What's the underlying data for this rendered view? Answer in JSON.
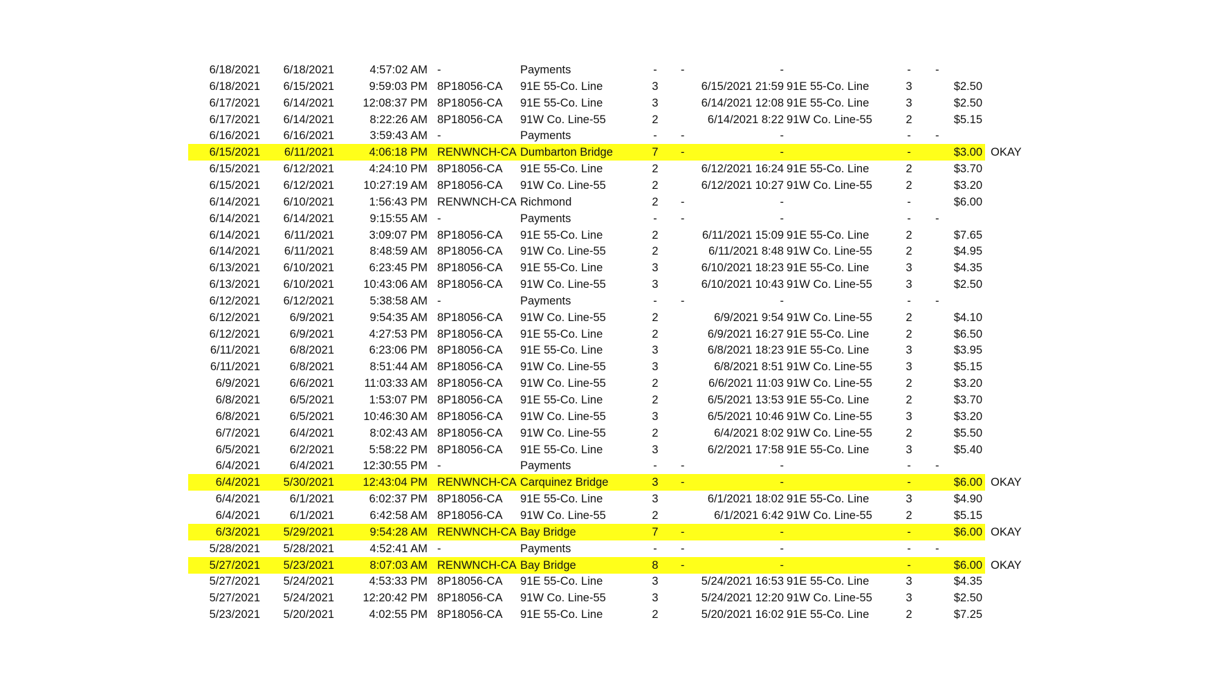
{
  "highlight_color": "#ffff1a",
  "rows": [
    {
      "cells": [
        "6/18/2021",
        "6/18/2021",
        "4:57:02 AM",
        "-",
        "Payments",
        "-",
        "-",
        "-",
        "",
        "-",
        "-",
        "",
        ""
      ],
      "highlight": false
    },
    {
      "cells": [
        "6/18/2021",
        "6/15/2021",
        "9:59:03 PM",
        "8P18056-CA",
        "91E 55-Co. Line",
        "3",
        "",
        "6/15/2021 21:59",
        "91E 55-Co. Line",
        "3",
        "",
        "$2.50",
        ""
      ],
      "highlight": false
    },
    {
      "cells": [
        "6/17/2021",
        "6/14/2021",
        "12:08:37 PM",
        "8P18056-CA",
        "91E 55-Co. Line",
        "3",
        "",
        "6/14/2021 12:08",
        "91E 55-Co. Line",
        "3",
        "",
        "$2.50",
        ""
      ],
      "highlight": false
    },
    {
      "cells": [
        "6/17/2021",
        "6/14/2021",
        "8:22:26 AM",
        "8P18056-CA",
        "91W Co. Line-55",
        "2",
        "",
        "6/14/2021 8:22",
        "91W Co. Line-55",
        "2",
        "",
        "$5.15",
        ""
      ],
      "highlight": false
    },
    {
      "cells": [
        "6/16/2021",
        "6/16/2021",
        "3:59:43 AM",
        "-",
        "Payments",
        "-",
        "-",
        "-",
        "",
        "-",
        "-",
        "",
        ""
      ],
      "highlight": false
    },
    {
      "cells": [
        "6/15/2021",
        "6/11/2021",
        "4:06:18 PM",
        "RENWNCH-CA",
        "Dumbarton Bridge",
        "7",
        "-",
        "-",
        "",
        "-",
        "",
        "$3.00",
        "OKAY"
      ],
      "highlight": true
    },
    {
      "cells": [
        "6/15/2021",
        "6/12/2021",
        "4:24:10 PM",
        "8P18056-CA",
        "91E 55-Co. Line",
        "2",
        "",
        "6/12/2021 16:24",
        "91E 55-Co. Line",
        "2",
        "",
        "$3.70",
        ""
      ],
      "highlight": false
    },
    {
      "cells": [
        "6/15/2021",
        "6/12/2021",
        "10:27:19 AM",
        "8P18056-CA",
        "91W Co. Line-55",
        "2",
        "",
        "6/12/2021 10:27",
        "91W Co. Line-55",
        "2",
        "",
        "$3.20",
        ""
      ],
      "highlight": false
    },
    {
      "cells": [
        "6/14/2021",
        "6/10/2021",
        "1:56:43 PM",
        "RENWNCH-CA",
        "Richmond",
        "2",
        "-",
        "-",
        "",
        "-",
        "",
        "$6.00",
        ""
      ],
      "highlight": false
    },
    {
      "cells": [
        "6/14/2021",
        "6/14/2021",
        "9:15:55 AM",
        "-",
        "Payments",
        "-",
        "-",
        "-",
        "",
        "-",
        "-",
        "",
        ""
      ],
      "highlight": false
    },
    {
      "cells": [
        "6/14/2021",
        "6/11/2021",
        "3:09:07 PM",
        "8P18056-CA",
        "91E 55-Co. Line",
        "2",
        "",
        "6/11/2021 15:09",
        "91E 55-Co. Line",
        "2",
        "",
        "$7.65",
        ""
      ],
      "highlight": false
    },
    {
      "cells": [
        "6/14/2021",
        "6/11/2021",
        "8:48:59 AM",
        "8P18056-CA",
        "91W Co. Line-55",
        "2",
        "",
        "6/11/2021 8:48",
        "91W Co. Line-55",
        "2",
        "",
        "$4.95",
        ""
      ],
      "highlight": false
    },
    {
      "cells": [
        "6/13/2021",
        "6/10/2021",
        "6:23:45 PM",
        "8P18056-CA",
        "91E 55-Co. Line",
        "3",
        "",
        "6/10/2021 18:23",
        "91E 55-Co. Line",
        "3",
        "",
        "$4.35",
        ""
      ],
      "highlight": false
    },
    {
      "cells": [
        "6/13/2021",
        "6/10/2021",
        "10:43:06 AM",
        "8P18056-CA",
        "91W Co. Line-55",
        "3",
        "",
        "6/10/2021 10:43",
        "91W Co. Line-55",
        "3",
        "",
        "$2.50",
        ""
      ],
      "highlight": false
    },
    {
      "cells": [
        "6/12/2021",
        "6/12/2021",
        "5:38:58 AM",
        "-",
        "Payments",
        "-",
        "-",
        "-",
        "",
        "-",
        "-",
        "",
        ""
      ],
      "highlight": false
    },
    {
      "cells": [
        "6/12/2021",
        "6/9/2021",
        "9:54:35 AM",
        "8P18056-CA",
        "91W Co. Line-55",
        "2",
        "",
        "6/9/2021 9:54",
        "91W Co. Line-55",
        "2",
        "",
        "$4.10",
        ""
      ],
      "highlight": false
    },
    {
      "cells": [
        "6/12/2021",
        "6/9/2021",
        "4:27:53 PM",
        "8P18056-CA",
        "91E 55-Co. Line",
        "2",
        "",
        "6/9/2021 16:27",
        "91E 55-Co. Line",
        "2",
        "",
        "$6.50",
        ""
      ],
      "highlight": false
    },
    {
      "cells": [
        "6/11/2021",
        "6/8/2021",
        "6:23:06 PM",
        "8P18056-CA",
        "91E 55-Co. Line",
        "3",
        "",
        "6/8/2021 18:23",
        "91E 55-Co. Line",
        "3",
        "",
        "$3.95",
        ""
      ],
      "highlight": false
    },
    {
      "cells": [
        "6/11/2021",
        "6/8/2021",
        "8:51:44 AM",
        "8P18056-CA",
        "91W Co. Line-55",
        "3",
        "",
        "6/8/2021 8:51",
        "91W Co. Line-55",
        "3",
        "",
        "$5.15",
        ""
      ],
      "highlight": false
    },
    {
      "cells": [
        "6/9/2021",
        "6/6/2021",
        "11:03:33 AM",
        "8P18056-CA",
        "91W Co. Line-55",
        "2",
        "",
        "6/6/2021 11:03",
        "91W Co. Line-55",
        "2",
        "",
        "$3.20",
        ""
      ],
      "highlight": false
    },
    {
      "cells": [
        "6/8/2021",
        "6/5/2021",
        "1:53:07 PM",
        "8P18056-CA",
        "91E 55-Co. Line",
        "2",
        "",
        "6/5/2021 13:53",
        "91E 55-Co. Line",
        "2",
        "",
        "$3.70",
        ""
      ],
      "highlight": false
    },
    {
      "cells": [
        "6/8/2021",
        "6/5/2021",
        "10:46:30 AM",
        "8P18056-CA",
        "91W Co. Line-55",
        "3",
        "",
        "6/5/2021 10:46",
        "91W Co. Line-55",
        "3",
        "",
        "$3.20",
        ""
      ],
      "highlight": false
    },
    {
      "cells": [
        "6/7/2021",
        "6/4/2021",
        "8:02:43 AM",
        "8P18056-CA",
        "91W Co. Line-55",
        "2",
        "",
        "6/4/2021 8:02",
        "91W Co. Line-55",
        "2",
        "",
        "$5.50",
        ""
      ],
      "highlight": false
    },
    {
      "cells": [
        "6/5/2021",
        "6/2/2021",
        "5:58:22 PM",
        "8P18056-CA",
        "91E 55-Co. Line",
        "3",
        "",
        "6/2/2021 17:58",
        "91E 55-Co. Line",
        "3",
        "",
        "$5.40",
        ""
      ],
      "highlight": false
    },
    {
      "cells": [
        "6/4/2021",
        "6/4/2021",
        "12:30:55 PM",
        "-",
        "Payments",
        "-",
        "-",
        "-",
        "",
        "-",
        "-",
        "",
        ""
      ],
      "highlight": false
    },
    {
      "cells": [
        "6/4/2021",
        "5/30/2021",
        "12:43:04 PM",
        "RENWNCH-CA",
        "Carquinez Bridge",
        "3",
        "-",
        "-",
        "",
        "-",
        "",
        "$6.00",
        "OKAY"
      ],
      "highlight": true
    },
    {
      "cells": [
        "6/4/2021",
        "6/1/2021",
        "6:02:37 PM",
        "8P18056-CA",
        "91E 55-Co. Line",
        "3",
        "",
        "6/1/2021 18:02",
        "91E 55-Co. Line",
        "3",
        "",
        "$4.90",
        ""
      ],
      "highlight": false
    },
    {
      "cells": [
        "6/4/2021",
        "6/1/2021",
        "6:42:58 AM",
        "8P18056-CA",
        "91W Co. Line-55",
        "2",
        "",
        "6/1/2021 6:42",
        "91W Co. Line-55",
        "2",
        "",
        "$5.15",
        ""
      ],
      "highlight": false
    },
    {
      "cells": [
        "6/3/2021",
        "5/29/2021",
        "9:54:28 AM",
        "RENWNCH-CA",
        "Bay Bridge",
        "7",
        "-",
        "-",
        "",
        "-",
        "",
        "$6.00",
        "OKAY"
      ],
      "highlight": true
    },
    {
      "cells": [
        "5/28/2021",
        "5/28/2021",
        "4:52:41 AM",
        "-",
        "Payments",
        "-",
        "-",
        "-",
        "",
        "-",
        "-",
        "",
        ""
      ],
      "highlight": false
    },
    {
      "cells": [
        "5/27/2021",
        "5/23/2021",
        "8:07:03 AM",
        "RENWNCH-CA",
        "Bay Bridge",
        "8",
        "-",
        "-",
        "",
        "-",
        "",
        "$6.00",
        "OKAY"
      ],
      "highlight": true
    },
    {
      "cells": [
        "5/27/2021",
        "5/24/2021",
        "4:53:33 PM",
        "8P18056-CA",
        "91E 55-Co. Line",
        "3",
        "",
        "5/24/2021 16:53",
        "91E 55-Co. Line",
        "3",
        "",
        "$4.35",
        ""
      ],
      "highlight": false
    },
    {
      "cells": [
        "5/27/2021",
        "5/24/2021",
        "12:20:42 PM",
        "8P18056-CA",
        "91W Co. Line-55",
        "3",
        "",
        "5/24/2021 12:20",
        "91W Co. Line-55",
        "3",
        "",
        "$2.50",
        ""
      ],
      "highlight": false
    },
    {
      "cells": [
        "5/23/2021",
        "5/20/2021",
        "4:02:55 PM",
        "8P18056-CA",
        "91E 55-Co. Line",
        "2",
        "",
        "5/20/2021 16:02",
        "91E 55-Co. Line",
        "2",
        "",
        "$7.25",
        ""
      ],
      "highlight": false
    }
  ]
}
